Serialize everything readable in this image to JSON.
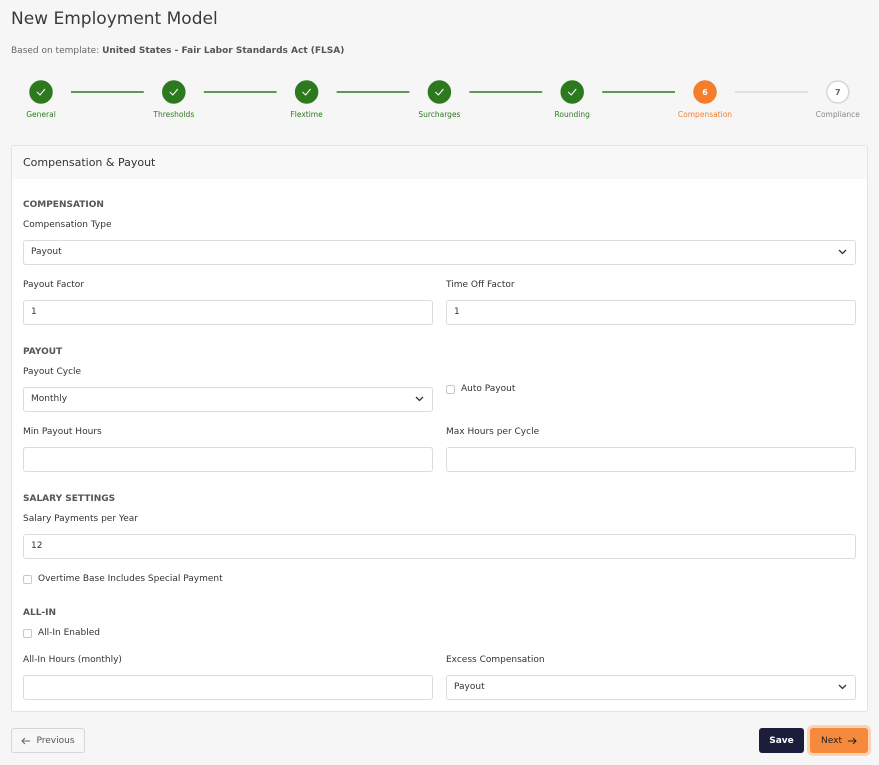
{
  "header": {
    "title": "New Employment Model",
    "subtitle_prefix": "Based on template:",
    "template": "United States - Fair Labor Standards Act (FLSA)"
  },
  "steps": [
    {
      "label": "General",
      "state": "done"
    },
    {
      "label": "Thresholds",
      "state": "done"
    },
    {
      "label": "Flextime",
      "state": "done"
    },
    {
      "label": "Surcharges",
      "state": "done"
    },
    {
      "label": "Rounding",
      "state": "done"
    },
    {
      "label": "Compensation",
      "number": 6,
      "state": "active"
    },
    {
      "label": "Compliance",
      "number": 7,
      "state": "todo"
    }
  ],
  "panel": {
    "title": "Compensation & Payout",
    "sections": [
      {
        "heading": "COMPENSATION",
        "rows": [
          [
            {
              "kind": "select",
              "label": "Compensation Type",
              "value": "Payout"
            }
          ],
          [
            {
              "kind": "input",
              "label": "Payout Factor",
              "value": 1
            },
            {
              "kind": "input",
              "label": "Time Off Factor",
              "value": 1
            }
          ]
        ]
      },
      {
        "heading": "PAYOUT",
        "rows": [
          [
            {
              "kind": "select",
              "label": "Payout Cycle",
              "value": "Monthly"
            },
            {
              "kind": "checkbox",
              "label": "Auto Payout"
            }
          ],
          [
            {
              "kind": "input",
              "label": "Min Payout Hours"
            },
            {
              "kind": "input",
              "label": "Max Hours per Cycle"
            }
          ]
        ]
      },
      {
        "heading": "SALARY SETTINGS",
        "rows": [
          [
            {
              "kind": "input",
              "label": "Salary Payments per Year",
              "value": 12
            }
          ],
          [
            {
              "kind": "checkbox",
              "label": "Overtime Base Includes Special Payment"
            }
          ]
        ]
      },
      {
        "heading": "ALL-IN",
        "rows": [
          [
            {
              "kind": "checkbox",
              "label": "All-In Enabled"
            }
          ],
          [
            {
              "kind": "input",
              "label": "All-In Hours (monthly)"
            },
            {
              "kind": "select",
              "label": "Excess Compensation",
              "value": "Payout"
            }
          ]
        ]
      }
    ]
  },
  "footer": {
    "previous": "Previous",
    "save": "Save",
    "next": "Next"
  }
}
